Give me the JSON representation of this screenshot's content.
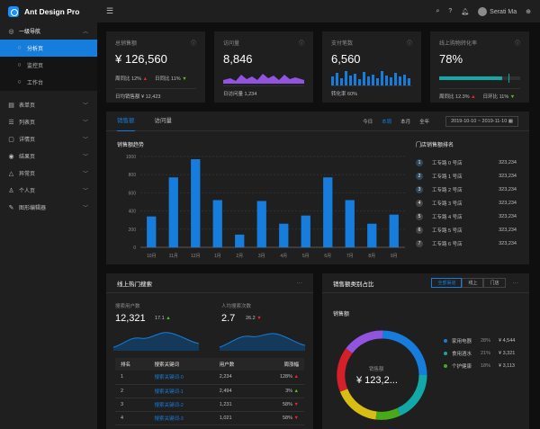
{
  "app": {
    "title": "Ant Design Pro"
  },
  "sidebar": {
    "group": {
      "label": "一级导航",
      "icon": "dashboard-icon"
    },
    "subitems": [
      {
        "label": "分析页",
        "active": true
      },
      {
        "label": "监控页",
        "active": false
      },
      {
        "label": "工作台",
        "active": false
      }
    ],
    "items": [
      {
        "label": "表单页",
        "icon": "form-icon"
      },
      {
        "label": "列表页",
        "icon": "table-icon"
      },
      {
        "label": "详情页",
        "icon": "profile-icon"
      },
      {
        "label": "结果页",
        "icon": "check-circle-icon"
      },
      {
        "label": "异常页",
        "icon": "warning-icon"
      },
      {
        "label": "个人页",
        "icon": "user-icon"
      },
      {
        "label": "图形编辑器",
        "icon": "highlight-icon"
      }
    ]
  },
  "header": {
    "user": "Serati Ma"
  },
  "kpis": [
    {
      "title": "总销售额",
      "value": "¥ 126,560",
      "line1a": "周同比 12%",
      "line1b": "日同比 11%",
      "foot": "日均销售额 ¥ 12,423"
    },
    {
      "title": "访问量",
      "value": "8,846",
      "foot": "日访问量 1,234"
    },
    {
      "title": "支付笔数",
      "value": "6,560",
      "foot": "转化率 60%"
    },
    {
      "title": "线上购物转化率",
      "value": "78%",
      "foot_a": "周同比 12.3%",
      "foot_b": "日环比 11%"
    }
  ],
  "progress": {
    "value": 0.78,
    "target": 0.85
  },
  "sales": {
    "tabs": [
      "销售额",
      "访问量"
    ],
    "ranges": [
      "今日",
      "本周",
      "本月",
      "全年"
    ],
    "date_range": "2019-10-10 ~ 2019-11-10",
    "chart_title": "销售额趋势",
    "rank_title": "门店销售额排名",
    "ranking": [
      {
        "no": "1",
        "name": "工专路 0 号店",
        "value": "323,234"
      },
      {
        "no": "2",
        "name": "工专路 1 号店",
        "value": "323,234"
      },
      {
        "no": "3",
        "name": "工专路 2 号店",
        "value": "323,234"
      },
      {
        "no": "4",
        "name": "工专路 3 号店",
        "value": "323,234"
      },
      {
        "no": "5",
        "name": "工专路 4 号店",
        "value": "323,234"
      },
      {
        "no": "6",
        "name": "工专路 5 号店",
        "value": "323,234"
      },
      {
        "no": "7",
        "name": "工专路 6 号店",
        "value": "323,234"
      }
    ]
  },
  "chart_data": {
    "type": "bar",
    "title": "销售额趋势",
    "categories": [
      "10月",
      "11月",
      "12月",
      "1月",
      "2月",
      "3月",
      "4月",
      "5月",
      "6月",
      "7月",
      "8月",
      "9月"
    ],
    "values": [
      340,
      770,
      970,
      520,
      140,
      510,
      260,
      350,
      770,
      520,
      260,
      360
    ],
    "ylim": [
      0,
      1000
    ],
    "yticks": [
      "0",
      "200",
      "400",
      "600",
      "800",
      "1000"
    ],
    "color": "#177ddc",
    "grid": true
  },
  "search": {
    "title": "线上热门搜索",
    "stat1": {
      "label": "搜索用户数",
      "value": "12,321",
      "change": "17.1"
    },
    "stat2": {
      "label": "人均搜索次数",
      "value": "2.7",
      "change": "26.2"
    },
    "columns": [
      "排名",
      "搜索关键词",
      "用户数",
      "周涨幅"
    ],
    "rows": [
      {
        "rank": "1",
        "keyword": "搜索关键词-0",
        "users": "2,234",
        "change": "128%"
      },
      {
        "rank": "2",
        "keyword": "搜索关键词-1",
        "users": "2,494",
        "change": "3%"
      },
      {
        "rank": "3",
        "keyword": "搜索关键词-2",
        "users": "1,231",
        "change": "58%"
      },
      {
        "rank": "4",
        "keyword": "搜索关键词-3",
        "users": "1,021",
        "change": "58%"
      }
    ]
  },
  "category": {
    "title": "销售额类别占比",
    "segments": [
      "全部渠道",
      "线上",
      "门店"
    ],
    "subtitle": "销售额",
    "center_label": "销售额",
    "center_value": "¥ 123,2...",
    "legend": [
      {
        "name": "家用电器",
        "pct": "28%",
        "value": "¥ 4,544",
        "color": "#177ddc"
      },
      {
        "name": "食用酒水",
        "pct": "21%",
        "value": "¥ 3,321",
        "color": "#13a8a8"
      },
      {
        "name": "个护健康",
        "pct": "18%",
        "value": "¥ 3,113",
        "color": "#49aa19"
      }
    ]
  }
}
